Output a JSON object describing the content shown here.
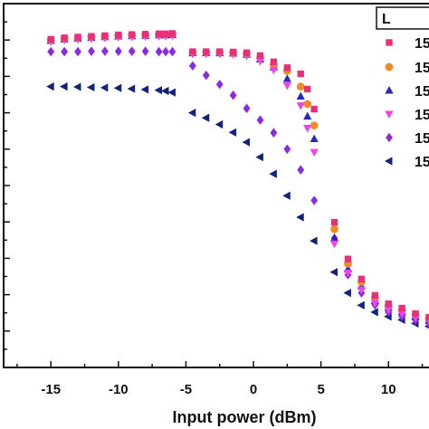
{
  "chart_data": {
    "type": "scatter",
    "title": "",
    "xlabel": "Input power (dBm)",
    "ylabel": "",
    "xlim": [
      -18.5,
      13
    ],
    "ylim": [
      0,
      1
    ],
    "x_ticks": [
      "-15",
      "-10",
      "-5",
      "0",
      "5",
      "10"
    ],
    "x_tick_values": [
      -15,
      -10,
      -5,
      0,
      5,
      10
    ],
    "legend": {
      "title": "L",
      "placement": "top-right"
    },
    "series": [
      {
        "name": "15",
        "color": "#e8307a",
        "marker": "square",
        "x": [
          -15,
          -14,
          -13,
          -12,
          -11,
          -10,
          -9,
          -8,
          -7,
          -6.5,
          -6,
          -4.5,
          -3.5,
          -2.5,
          -1.5,
          -0.5,
          0.5,
          1.5,
          2.5,
          3.5,
          4,
          4.5,
          6,
          7,
          8,
          9,
          10,
          11,
          12,
          13
        ],
        "y": [
          0.902,
          0.906,
          0.908,
          0.91,
          0.912,
          0.914,
          0.915,
          0.916,
          0.917,
          0.917,
          0.918,
          0.868,
          0.868,
          0.868,
          0.867,
          0.865,
          0.857,
          0.84,
          0.824,
          0.807,
          0.765,
          0.71,
          0.399,
          0.298,
          0.243,
          0.198,
          0.175,
          0.163,
          0.148,
          0.138
        ]
      },
      {
        "name": "15",
        "color": "#f08a24",
        "marker": "circle",
        "x": [
          -15,
          -14,
          -13,
          -12,
          -11,
          -10,
          -9,
          -8,
          -7,
          -6.5,
          -6,
          -4.5,
          -3.5,
          -2.5,
          -1.5,
          -0.5,
          0.5,
          1.5,
          2.5,
          3.5,
          4,
          4.5,
          6,
          7,
          8,
          9,
          10,
          11,
          12,
          13
        ],
        "y": [
          0.9,
          0.904,
          0.906,
          0.908,
          0.91,
          0.912,
          0.913,
          0.914,
          0.915,
          0.915,
          0.916,
          0.866,
          0.866,
          0.866,
          0.865,
          0.862,
          0.852,
          0.833,
          0.815,
          0.772,
          0.724,
          0.665,
          0.38,
          0.285,
          0.235,
          0.192,
          0.17,
          0.158,
          0.145,
          0.135
        ]
      },
      {
        "name": "15",
        "color": "#2828b8",
        "marker": "triangle-up",
        "x": [
          -15,
          -14,
          -13,
          -12,
          -11,
          -10,
          -9,
          -8,
          -7,
          -6.5,
          -6,
          -4.5,
          -3.5,
          -2.5,
          -1.5,
          -0.5,
          0.5,
          1.5,
          2.5,
          3.5,
          4,
          4.5,
          6,
          7,
          8,
          9,
          10,
          11,
          12,
          13
        ],
        "y": [
          0.898,
          0.902,
          0.904,
          0.906,
          0.908,
          0.91,
          0.911,
          0.912,
          0.913,
          0.913,
          0.914,
          0.864,
          0.864,
          0.864,
          0.863,
          0.86,
          0.847,
          0.825,
          0.793,
          0.745,
          0.69,
          0.628,
          0.355,
          0.27,
          0.223,
          0.183,
          0.164,
          0.152,
          0.14,
          0.13
        ]
      },
      {
        "name": "15",
        "color": "#ee44ee",
        "marker": "triangle-down",
        "x": [
          -15,
          -14,
          -13,
          -12,
          -11,
          -10,
          -9,
          -8,
          -7,
          -6.5,
          -6,
          -4.5,
          -3.5,
          -2.5,
          -1.5,
          -0.5,
          0.5,
          1.5,
          2.5,
          3.5,
          4,
          4.5,
          6,
          7,
          8,
          9,
          10,
          11,
          12,
          13
        ],
        "y": [
          0.896,
          0.9,
          0.902,
          0.904,
          0.906,
          0.908,
          0.909,
          0.91,
          0.911,
          0.911,
          0.912,
          0.862,
          0.862,
          0.862,
          0.861,
          0.857,
          0.842,
          0.818,
          0.775,
          0.72,
          0.658,
          0.592,
          0.34,
          0.26,
          0.214,
          0.177,
          0.158,
          0.147,
          0.136,
          0.126
        ]
      },
      {
        "name": "15",
        "color": "#8a2be2",
        "marker": "diamond",
        "x": [
          -15,
          -14,
          -13,
          -12,
          -11,
          -10,
          -9,
          -8,
          -7,
          -6.5,
          -6,
          -4.5,
          -3.5,
          -2.5,
          -1.5,
          -0.5,
          0.5,
          1.5,
          2.5,
          3.5,
          4.5,
          6,
          7,
          8,
          9,
          10,
          11,
          12,
          13
        ],
        "y": [
          0.868,
          0.868,
          0.868,
          0.869,
          0.869,
          0.869,
          0.869,
          0.869,
          0.868,
          0.868,
          0.868,
          0.829,
          0.803,
          0.778,
          0.748,
          0.712,
          0.68,
          0.645,
          0.6,
          0.543,
          0.459,
          0.355,
          0.255,
          0.205,
          0.172,
          0.152,
          0.14,
          0.13,
          0.12
        ]
      },
      {
        "name": "15",
        "color": "#12237a",
        "marker": "triangle-left",
        "x": [
          -15,
          -14,
          -13,
          -12,
          -11,
          -10,
          -9,
          -8,
          -7,
          -6.5,
          -6,
          -4.5,
          -3.5,
          -2.5,
          -1.5,
          -0.5,
          0.5,
          1.5,
          2.5,
          3.5,
          4.5,
          6,
          7,
          8,
          9,
          10,
          11,
          12,
          13
        ],
        "y": [
          0.772,
          0.772,
          0.771,
          0.77,
          0.769,
          0.768,
          0.766,
          0.764,
          0.762,
          0.76,
          0.756,
          0.7,
          0.686,
          0.668,
          0.646,
          0.619,
          0.578,
          0.532,
          0.472,
          0.413,
          0.348,
          0.262,
          0.205,
          0.171,
          0.152,
          0.14,
          0.131,
          0.121,
          0.113
        ]
      }
    ]
  }
}
